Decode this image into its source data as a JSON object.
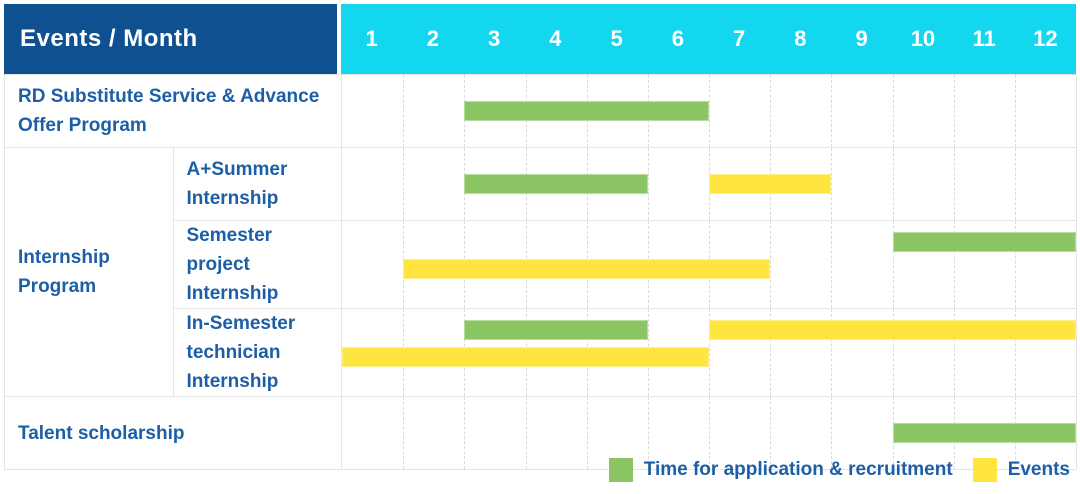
{
  "header": {
    "title": "Events / Month",
    "months": [
      "1",
      "2",
      "3",
      "4",
      "5",
      "6",
      "7",
      "8",
      "9",
      "10",
      "11",
      "12"
    ]
  },
  "legend": [
    {
      "id": "recruitment",
      "label": "Time for application & recruitment",
      "color": "#8BC564"
    },
    {
      "id": "events",
      "label": "Events",
      "color": "#FFE53F"
    }
  ],
  "colors": {
    "header_bg": "#0F5190",
    "month_header_bg": "#13D7EF",
    "label_text": "#1C5FA6",
    "recruitment_bar": "#8BC564",
    "events_bar": "#FFE53F",
    "grid": "#E4E4E4"
  },
  "chart_data": {
    "type": "table",
    "title": "Events / Month",
    "xlabel": "Month",
    "x_ticks": [
      1,
      2,
      3,
      4,
      5,
      6,
      7,
      8,
      9,
      10,
      11,
      12
    ],
    "x_range": [
      1,
      12
    ],
    "grid": true,
    "legend_position": "bottom-right",
    "series_names": {
      "recruitment": "Time for application & recruitment",
      "events": "Events"
    },
    "rows": [
      {
        "group": "",
        "label": "RD Substitute Service & Advance Offer Program",
        "bars": [
          {
            "series": "recruitment",
            "start_month": 3,
            "end_month": 6,
            "lane": "center"
          }
        ]
      },
      {
        "group": "Internship Program",
        "label": "A+Summer Internship",
        "bars": [
          {
            "series": "recruitment",
            "start_month": 3,
            "end_month": 5,
            "lane": "center"
          },
          {
            "series": "events",
            "start_month": 7,
            "end_month": 8,
            "lane": "center"
          }
        ]
      },
      {
        "group": "Internship Program",
        "label": "Semester project Internship",
        "bars": [
          {
            "series": "recruitment",
            "start_month": 10,
            "end_month": 12,
            "lane": "top"
          },
          {
            "series": "events",
            "start_month": 2,
            "end_month": 7,
            "lane": "bottom"
          }
        ]
      },
      {
        "group": "Internship Program",
        "label": "In-Semester technician Internship",
        "bars": [
          {
            "series": "recruitment",
            "start_month": 3,
            "end_month": 5,
            "lane": "top"
          },
          {
            "series": "events",
            "start_month": 7,
            "end_month": 12,
            "lane": "top"
          },
          {
            "series": "events",
            "start_month": 1,
            "end_month": 6,
            "lane": "bottom"
          }
        ]
      },
      {
        "group": "",
        "label": "Talent scholarship",
        "bars": [
          {
            "series": "recruitment",
            "start_month": 10,
            "end_month": 12,
            "lane": "center"
          }
        ]
      }
    ]
  }
}
